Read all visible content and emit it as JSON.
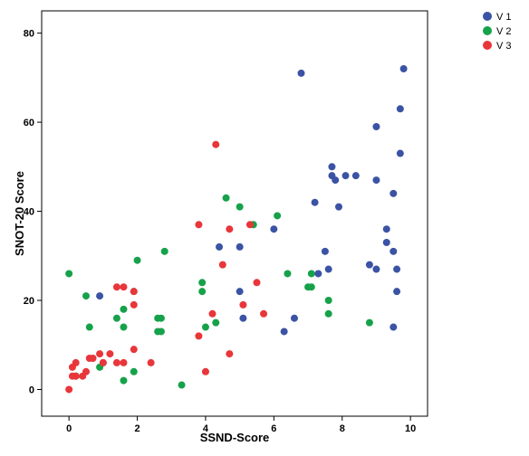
{
  "chart_data": {
    "type": "scatter",
    "title": "",
    "xlabel": "SSND-Score",
    "ylabel": "SNOT-20 Score",
    "xlim": [
      -0.8,
      10.5
    ],
    "ylim": [
      -6,
      85
    ],
    "xticks": [
      0,
      2,
      4,
      6,
      8,
      10
    ],
    "yticks": [
      0,
      20,
      40,
      60,
      80
    ],
    "grid": false,
    "legend_position": "top-right outside",
    "series": [
      {
        "name": "V 1",
        "color": "#3b53a4",
        "points": [
          [
            0.9,
            21
          ],
          [
            4.4,
            32
          ],
          [
            5.0,
            32
          ],
          [
            5.0,
            22
          ],
          [
            5.1,
            16
          ],
          [
            6.0,
            36
          ],
          [
            6.3,
            13
          ],
          [
            6.6,
            16
          ],
          [
            6.8,
            71
          ],
          [
            7.2,
            42
          ],
          [
            7.3,
            26
          ],
          [
            7.5,
            31
          ],
          [
            7.6,
            27
          ],
          [
            7.7,
            50
          ],
          [
            7.7,
            48
          ],
          [
            7.8,
            47
          ],
          [
            7.9,
            41
          ],
          [
            8.1,
            48
          ],
          [
            8.4,
            48
          ],
          [
            8.8,
            28
          ],
          [
            9.0,
            27
          ],
          [
            9.0,
            59
          ],
          [
            9.0,
            47
          ],
          [
            9.3,
            36
          ],
          [
            9.3,
            33
          ],
          [
            9.5,
            44
          ],
          [
            9.5,
            31
          ],
          [
            9.5,
            14
          ],
          [
            9.6,
            27
          ],
          [
            9.6,
            22
          ],
          [
            9.7,
            63
          ],
          [
            9.7,
            53
          ],
          [
            9.8,
            72
          ]
        ]
      },
      {
        "name": "V 2",
        "color": "#16a24a",
        "points": [
          [
            0.0,
            26
          ],
          [
            0.2,
            3
          ],
          [
            0.5,
            21
          ],
          [
            0.6,
            14
          ],
          [
            0.9,
            5
          ],
          [
            1.0,
            6
          ],
          [
            1.4,
            16
          ],
          [
            1.6,
            18
          ],
          [
            1.6,
            14
          ],
          [
            1.6,
            2
          ],
          [
            1.9,
            22
          ],
          [
            1.9,
            4
          ],
          [
            2.0,
            29
          ],
          [
            2.6,
            16
          ],
          [
            2.6,
            13
          ],
          [
            2.7,
            16
          ],
          [
            2.7,
            13
          ],
          [
            2.8,
            31
          ],
          [
            3.3,
            1
          ],
          [
            3.9,
            24
          ],
          [
            3.9,
            22
          ],
          [
            4.0,
            14
          ],
          [
            4.3,
            15
          ],
          [
            4.6,
            43
          ],
          [
            5.0,
            41
          ],
          [
            5.4,
            37
          ],
          [
            6.1,
            39
          ],
          [
            6.4,
            26
          ],
          [
            7.0,
            23
          ],
          [
            7.1,
            26
          ],
          [
            7.1,
            23
          ],
          [
            7.6,
            20
          ],
          [
            7.6,
            17
          ],
          [
            8.8,
            15
          ]
        ]
      },
      {
        "name": "V 3",
        "color": "#e8363a",
        "points": [
          [
            0.0,
            0
          ],
          [
            0.1,
            3
          ],
          [
            0.1,
            5
          ],
          [
            0.2,
            3
          ],
          [
            0.2,
            6
          ],
          [
            0.4,
            3
          ],
          [
            0.5,
            4
          ],
          [
            0.6,
            7
          ],
          [
            0.7,
            7
          ],
          [
            0.9,
            8
          ],
          [
            1.0,
            6
          ],
          [
            1.2,
            8
          ],
          [
            1.4,
            23
          ],
          [
            1.4,
            6
          ],
          [
            1.6,
            23
          ],
          [
            1.6,
            6
          ],
          [
            1.9,
            9
          ],
          [
            1.9,
            22
          ],
          [
            1.9,
            19
          ],
          [
            2.4,
            6
          ],
          [
            3.8,
            37
          ],
          [
            3.8,
            12
          ],
          [
            4.0,
            4
          ],
          [
            4.2,
            17
          ],
          [
            4.3,
            55
          ],
          [
            4.5,
            28
          ],
          [
            4.7,
            8
          ],
          [
            4.7,
            36
          ],
          [
            5.1,
            19
          ],
          [
            5.3,
            37
          ],
          [
            5.5,
            24
          ],
          [
            5.7,
            17
          ]
        ]
      }
    ]
  }
}
